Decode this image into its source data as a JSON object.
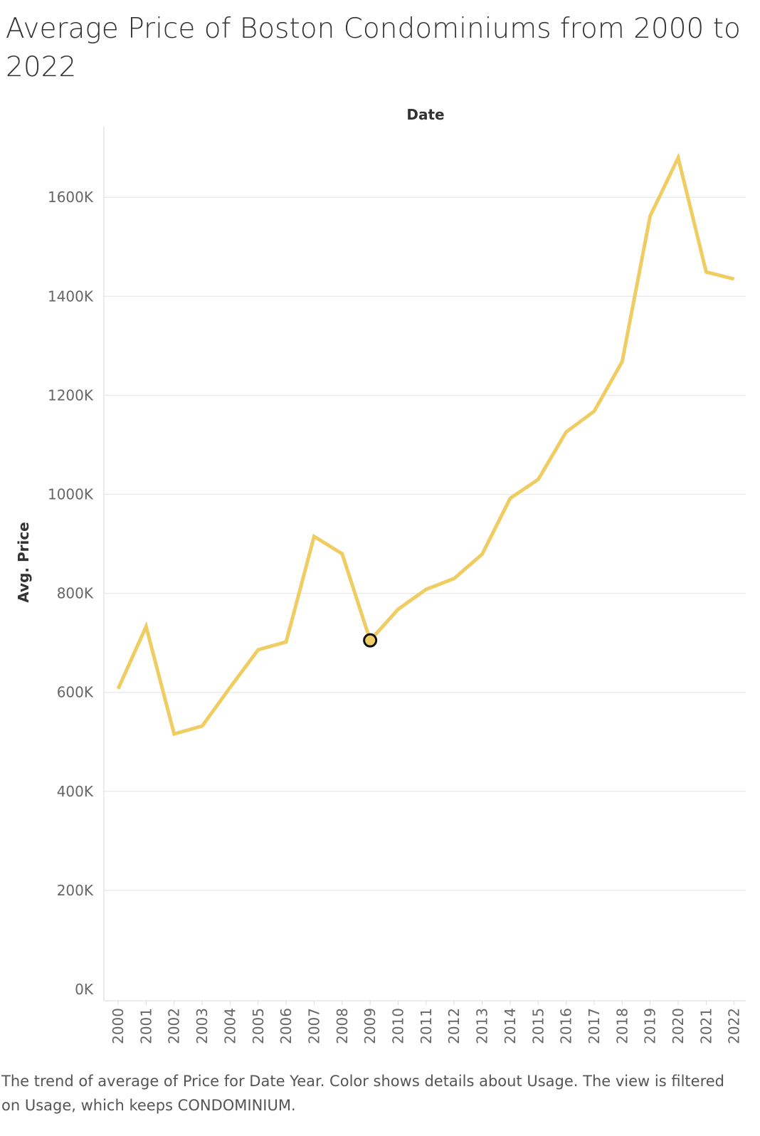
{
  "title": "Average Price of Boston Condominiums from 2000 to 2022",
  "caption": "The trend of average of Price for Date Year.  Color shows details about Usage. The view is filtered on Usage, which keeps CONDOMINIUM.",
  "chart_data": {
    "type": "line",
    "title": "Average Price of Boston Condominiums from 2000 to 2022",
    "xlabel": "Date",
    "ylabel": "Avg. Price",
    "x": [
      "2000",
      "2001",
      "2002",
      "2003",
      "2004",
      "2005",
      "2006",
      "2007",
      "2008",
      "2009",
      "2010",
      "2011",
      "2012",
      "2013",
      "2014",
      "2015",
      "2016",
      "2017",
      "2018",
      "2019",
      "2020",
      "2021",
      "2022"
    ],
    "series": [
      {
        "values": [
          607000,
          733000,
          516000,
          532000,
          610000,
          686000,
          702000,
          915000,
          880000,
          705000,
          768000,
          808000,
          830000,
          879000,
          992000,
          1030000,
          1126000,
          1168000,
          1268000,
          1562000,
          1680000,
          1449000,
          1435000
        ],
        "color": "#f0cd63"
      }
    ],
    "highlight": {
      "x": "2009",
      "value": 705000
    },
    "y_ticks": [
      0,
      200000,
      400000,
      600000,
      800000,
      1000000,
      1200000,
      1400000,
      1600000
    ],
    "y_tick_labels": [
      "0K",
      "200K",
      "400K",
      "600K",
      "800K",
      "1000K",
      "1200K",
      "1400K",
      "1600K"
    ],
    "ylim": [
      0,
      1800000
    ],
    "grid": true,
    "legend": "none"
  }
}
